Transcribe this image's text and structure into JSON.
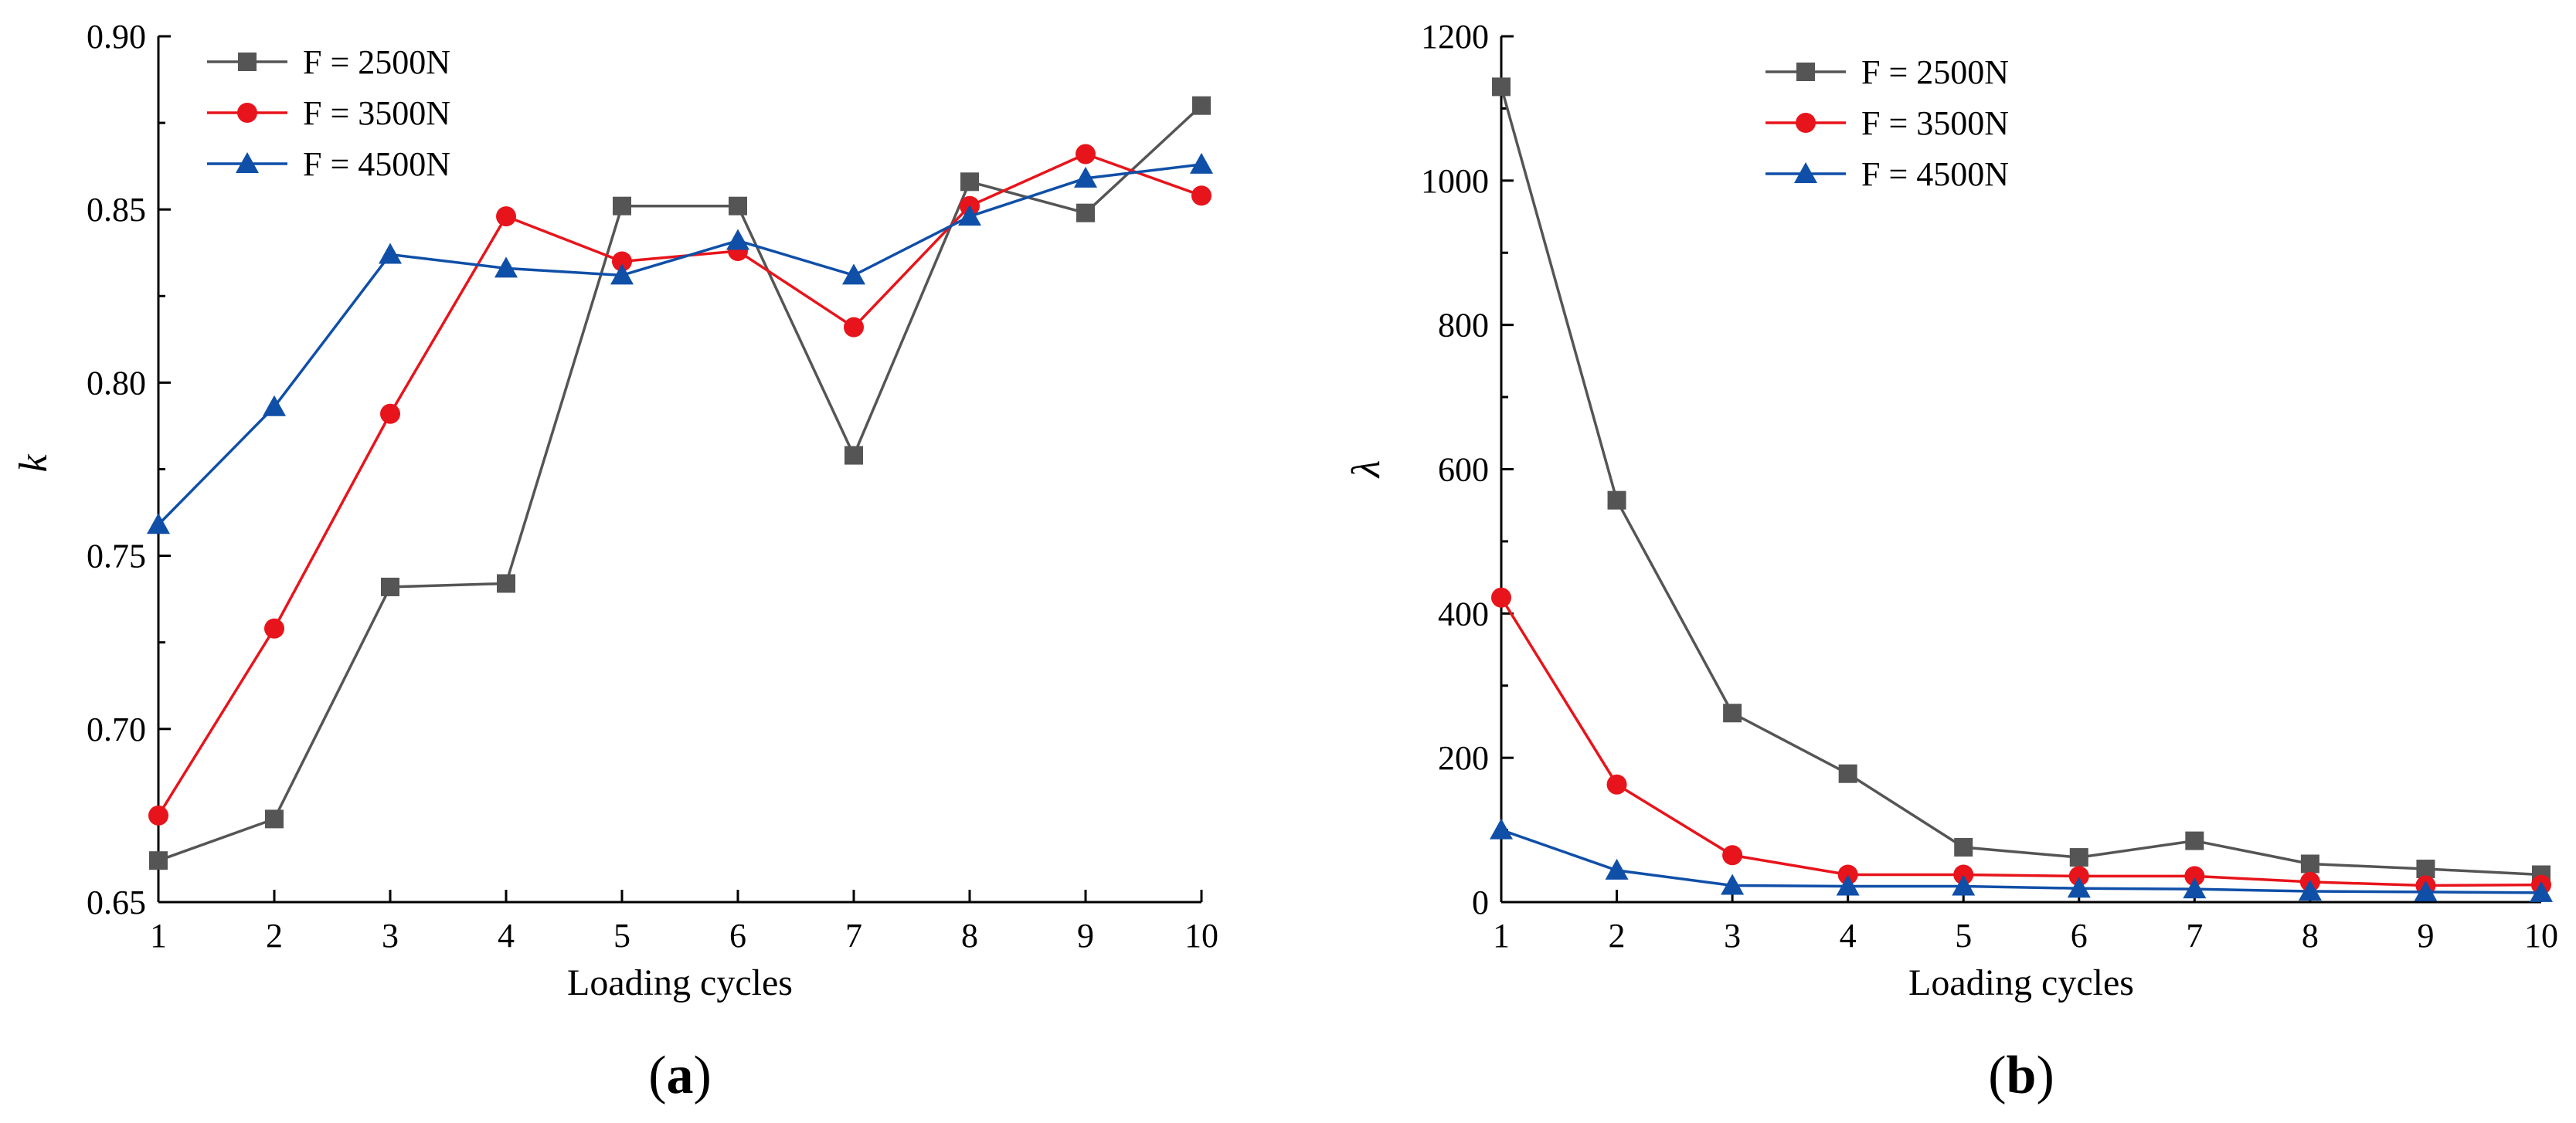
{
  "chart_data": [
    {
      "type": "line",
      "panel_label": "(a)",
      "panel_letter": "a",
      "xlabel": "Loading cycles",
      "ylabel": "k",
      "x": [
        1,
        2,
        3,
        4,
        5,
        6,
        7,
        8,
        9,
        10
      ],
      "xlim": [
        1,
        10
      ],
      "ylim": [
        0.65,
        0.9
      ],
      "xticks": [
        "1",
        "2",
        "3",
        "4",
        "5",
        "6",
        "7",
        "8",
        "9",
        "10"
      ],
      "yticks": [
        "0.65",
        "0.70",
        "0.75",
        "0.80",
        "0.85",
        "0.90"
      ],
      "ytick_values": [
        0.65,
        0.7,
        0.75,
        0.8,
        0.85,
        0.9
      ],
      "legend_position": "top-left",
      "grid": false,
      "series": [
        {
          "name": "F = 2500N",
          "color": "#555555",
          "marker": "square",
          "values": [
            0.662,
            0.674,
            0.741,
            0.742,
            0.851,
            0.851,
            0.779,
            0.858,
            0.849,
            0.88
          ]
        },
        {
          "name": "F = 3500N",
          "color": "#e8141b",
          "marker": "circle",
          "values": [
            0.675,
            0.729,
            0.791,
            0.848,
            0.835,
            0.838,
            0.816,
            0.851,
            0.866,
            0.854
          ]
        },
        {
          "name": "F = 4500N",
          "color": "#0f4fa8",
          "marker": "triangle",
          "values": [
            0.759,
            0.793,
            0.837,
            0.833,
            0.831,
            0.841,
            0.831,
            0.848,
            0.859,
            0.863
          ]
        }
      ]
    },
    {
      "type": "line",
      "panel_label": "(b)",
      "panel_letter": "b",
      "xlabel": "Loading cycles",
      "ylabel": "λ",
      "x": [
        1,
        2,
        3,
        4,
        5,
        6,
        7,
        8,
        9,
        10
      ],
      "xlim": [
        1,
        10
      ],
      "ylim": [
        0,
        1200
      ],
      "xticks": [
        "1",
        "2",
        "3",
        "4",
        "5",
        "6",
        "7",
        "8",
        "9",
        "10"
      ],
      "yticks": [
        "0",
        "200",
        "400",
        "600",
        "800",
        "1000",
        "1200"
      ],
      "ytick_values": [
        0,
        200,
        400,
        600,
        800,
        1000,
        1200
      ],
      "legend_position": "top-center",
      "grid": false,
      "series": [
        {
          "name": "F = 2500N",
          "color": "#555555",
          "marker": "square",
          "values": [
            1130,
            557,
            262,
            178,
            76,
            62,
            85,
            53,
            46,
            38
          ]
        },
        {
          "name": "F = 3500N",
          "color": "#e8141b",
          "marker": "circle",
          "values": [
            422,
            163,
            65,
            38,
            38,
            36,
            36,
            28,
            23,
            24
          ]
        },
        {
          "name": "F = 4500N",
          "color": "#0f4fa8",
          "marker": "triangle",
          "values": [
            100,
            44,
            23,
            22,
            22,
            19,
            18,
            15,
            14,
            13
          ]
        }
      ]
    }
  ]
}
